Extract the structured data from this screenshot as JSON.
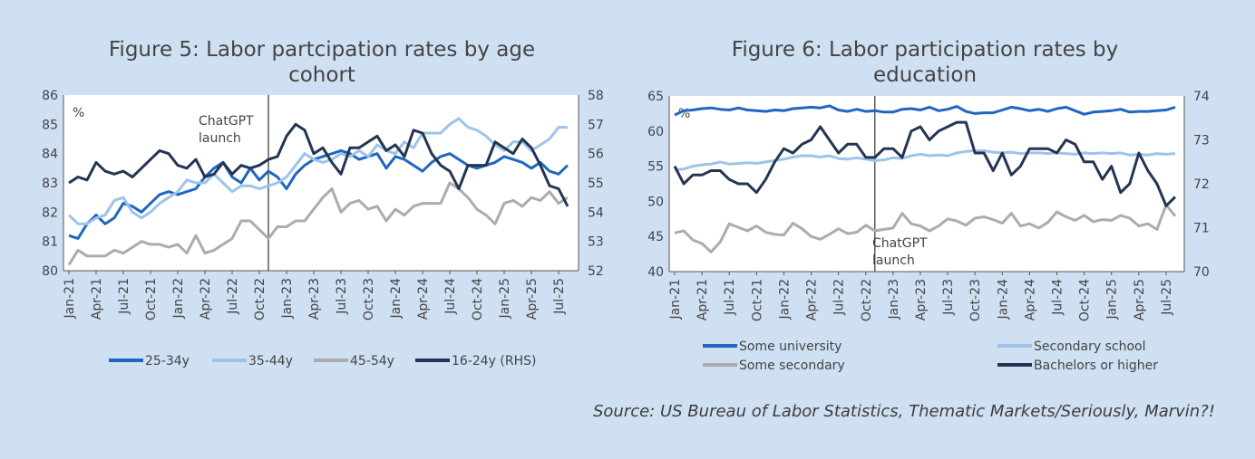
{
  "source": "Source: US Bureau of Labor Statistics, Thematic Markets/Seriously, Marvin?!",
  "colors": {
    "series_25_34": "#1f66c0",
    "series_35_44": "#9ec3ea",
    "series_45_54": "#ababb0",
    "series_16_24": "#233553",
    "some_university": "#1f66c0",
    "secondary_school": "#9ec3ea",
    "some_secondary": "#ababb0",
    "bachelors": "#233553"
  },
  "chart_data": [
    {
      "type": "line",
      "title": "Figure 5: Labor partcipation rates by age cohort",
      "x": [
        "Jan-21",
        "Feb-21",
        "Mar-21",
        "Apr-21",
        "May-21",
        "Jun-21",
        "Jul-21",
        "Aug-21",
        "Sep-21",
        "Oct-21",
        "Nov-21",
        "Dec-21",
        "Jan-22",
        "Feb-22",
        "Mar-22",
        "Apr-22",
        "May-22",
        "Jun-22",
        "Jul-22",
        "Aug-22",
        "Sep-22",
        "Oct-22",
        "Nov-22",
        "Dec-22",
        "Jan-23",
        "Feb-23",
        "Mar-23",
        "Apr-23",
        "May-23",
        "Jun-23",
        "Jul-23",
        "Aug-23",
        "Sep-23",
        "Oct-23",
        "Nov-23",
        "Dec-23",
        "Jan-24",
        "Feb-24",
        "Mar-24",
        "Apr-24",
        "May-24",
        "Jun-24",
        "Jul-24",
        "Aug-24",
        "Sep-24",
        "Oct-24",
        "Nov-24",
        "Dec-24",
        "Jan-25",
        "Feb-25",
        "Mar-25",
        "Apr-25",
        "May-25",
        "Jun-25",
        "Jul-25",
        "Aug-25"
      ],
      "x_tick_labels": [
        "Jan-21",
        "Apr-21",
        "Jul-21",
        "Oct-21",
        "Jan-22",
        "Apr-22",
        "Jul-22",
        "Oct-22",
        "Jan-23",
        "Apr-23",
        "Jul-23",
        "Oct-23",
        "Jan-24",
        "Apr-24",
        "Jul-24",
        "Oct-24",
        "Jan-25",
        "Apr-25",
        "Jul-25"
      ],
      "y_left": {
        "label": "%",
        "lim": [
          80,
          86
        ],
        "ticks": [
          80,
          81,
          82,
          83,
          84,
          85,
          86
        ]
      },
      "y_right": {
        "lim": [
          52,
          58
        ],
        "ticks": [
          52,
          53,
          54,
          55,
          56,
          57,
          58
        ]
      },
      "annotation": {
        "text": [
          "ChatGPT",
          "launch"
        ],
        "x": "Nov-22"
      },
      "legend_position": "bottom",
      "series": [
        {
          "name": "25-34y",
          "axis": "left",
          "color_key": "series_25_34",
          "values": [
            81.2,
            81.1,
            81.6,
            81.9,
            81.6,
            81.8,
            82.3,
            82.2,
            82.0,
            82.3,
            82.6,
            82.7,
            82.6,
            82.7,
            82.8,
            83.2,
            83.5,
            83.7,
            83.2,
            83.0,
            83.5,
            83.1,
            83.4,
            83.2,
            82.8,
            83.3,
            83.6,
            83.8,
            83.9,
            84.0,
            84.1,
            84.0,
            83.8,
            83.9,
            84.0,
            83.5,
            83.9,
            83.8,
            83.6,
            83.4,
            83.7,
            83.9,
            84.0,
            83.8,
            83.6,
            83.5,
            83.6,
            83.7,
            83.9,
            83.8,
            83.7,
            83.5,
            83.7,
            83.4,
            83.3,
            83.6
          ]
        },
        {
          "name": "35-44y",
          "axis": "left",
          "color_key": "series_35_44",
          "values": [
            81.9,
            81.6,
            81.6,
            81.8,
            81.9,
            82.4,
            82.5,
            82.0,
            81.8,
            82.0,
            82.3,
            82.5,
            82.7,
            83.1,
            83.0,
            83.0,
            83.3,
            83.0,
            82.7,
            82.9,
            82.9,
            82.8,
            82.9,
            83.0,
            83.2,
            83.6,
            84.0,
            83.8,
            83.7,
            83.8,
            84.0,
            83.9,
            84.1,
            83.9,
            84.3,
            84.1,
            84.0,
            84.4,
            84.2,
            84.7,
            84.7,
            84.7,
            85.0,
            85.2,
            84.9,
            84.8,
            84.6,
            84.3,
            84.1,
            84.4,
            84.4,
            84.1,
            84.3,
            84.5,
            84.9,
            84.9
          ]
        },
        {
          "name": "45-54y",
          "axis": "left",
          "color_key": "series_45_54",
          "values": [
            80.2,
            80.7,
            80.5,
            80.5,
            80.5,
            80.7,
            80.6,
            80.8,
            81.0,
            80.9,
            80.9,
            80.8,
            80.9,
            80.6,
            81.2,
            80.6,
            80.7,
            80.9,
            81.1,
            81.7,
            81.7,
            81.4,
            81.1,
            81.5,
            81.5,
            81.7,
            81.7,
            82.1,
            82.5,
            82.8,
            82.0,
            82.3,
            82.4,
            82.1,
            82.2,
            81.7,
            82.1,
            81.9,
            82.2,
            82.3,
            82.3,
            82.3,
            83.0,
            82.8,
            82.5,
            82.1,
            81.9,
            81.6,
            82.3,
            82.4,
            82.2,
            82.5,
            82.4,
            82.7,
            82.3,
            82.5
          ]
        },
        {
          "name": "16-24y (RHS)",
          "axis": "right",
          "color_key": "series_16_24",
          "values": [
            55.0,
            55.2,
            55.1,
            55.7,
            55.4,
            55.3,
            55.4,
            55.2,
            55.5,
            55.8,
            56.1,
            56.0,
            55.6,
            55.5,
            55.8,
            55.2,
            55.3,
            55.7,
            55.3,
            55.6,
            55.5,
            55.6,
            55.8,
            55.9,
            56.6,
            57.0,
            56.8,
            56.0,
            56.2,
            55.7,
            55.3,
            56.2,
            56.2,
            56.4,
            56.6,
            56.1,
            56.3,
            55.9,
            56.8,
            56.7,
            56.0,
            55.6,
            55.4,
            54.8,
            55.6,
            55.6,
            55.6,
            56.4,
            56.2,
            56.0,
            56.5,
            56.2,
            55.6,
            54.9,
            54.8,
            54.2
          ]
        }
      ]
    },
    {
      "type": "line",
      "title": "Figure 6: Labor participation rates by education",
      "x": [
        "Jan-21",
        "Feb-21",
        "Mar-21",
        "Apr-21",
        "May-21",
        "Jun-21",
        "Jul-21",
        "Aug-21",
        "Sep-21",
        "Oct-21",
        "Nov-21",
        "Dec-21",
        "Jan-22",
        "Feb-22",
        "Mar-22",
        "Apr-22",
        "May-22",
        "Jun-22",
        "Jul-22",
        "Aug-22",
        "Sep-22",
        "Oct-22",
        "Nov-22",
        "Dec-22",
        "Jan-23",
        "Feb-23",
        "Mar-23",
        "Apr-23",
        "May-23",
        "Jun-23",
        "Jul-23",
        "Aug-23",
        "Sep-23",
        "Oct-23",
        "Nov-23",
        "Dec-23",
        "Jan-24",
        "Feb-24",
        "Mar-24",
        "Apr-24",
        "May-24",
        "Jun-24",
        "Jul-24",
        "Aug-24",
        "Sep-24",
        "Oct-24",
        "Nov-24",
        "Dec-24",
        "Jan-25",
        "Feb-25",
        "Mar-25",
        "Apr-25",
        "May-25",
        "Jun-25",
        "Jul-25",
        "Aug-25"
      ],
      "x_tick_labels": [
        "Jan-21",
        "Apr-21",
        "Jul-21",
        "Oct-21",
        "Jan-22",
        "Apr-22",
        "Jul-22",
        "Oct-22",
        "Jan-23",
        "Apr-23",
        "Jul-23",
        "Oct-23",
        "Jan-24",
        "Apr-24",
        "Jul-24",
        "Oct-24",
        "Jan-25",
        "Apr-25",
        "Jul-25"
      ],
      "y_left": {
        "label": "%",
        "lim": [
          40,
          65
        ],
        "ticks": [
          40,
          45,
          50,
          55,
          60,
          65
        ]
      },
      "y_right": {
        "lim": [
          70,
          74
        ],
        "ticks": [
          70,
          71,
          72,
          73,
          74
        ]
      },
      "annotation": {
        "text": [
          "ChatGPT",
          "launch"
        ],
        "x": "Nov-22"
      },
      "legend_position": "bottom",
      "series": [
        {
          "name": "Some university",
          "axis": "left",
          "color_key": "some_university",
          "values": [
            62.3,
            62.9,
            63.0,
            63.2,
            63.3,
            63.1,
            63.0,
            63.3,
            63.0,
            62.9,
            62.8,
            63.0,
            62.9,
            63.2,
            63.3,
            63.4,
            63.3,
            63.6,
            63.0,
            62.8,
            63.1,
            62.8,
            62.9,
            62.7,
            62.7,
            63.1,
            63.2,
            63.0,
            63.4,
            62.9,
            63.1,
            63.5,
            62.8,
            62.5,
            62.6,
            62.6,
            63.0,
            63.4,
            63.2,
            62.9,
            63.1,
            62.8,
            63.2,
            63.4,
            62.9,
            62.4,
            62.7,
            62.8,
            62.9,
            63.1,
            62.7,
            62.8,
            62.8,
            62.9,
            63.0,
            63.4
          ]
        },
        {
          "name": "Secondary school",
          "axis": "left",
          "color_key": "secondary_school",
          "values": [
            54.5,
            54.6,
            55.0,
            55.2,
            55.3,
            55.6,
            55.3,
            55.4,
            55.5,
            55.4,
            55.6,
            55.8,
            56.0,
            56.3,
            56.5,
            56.5,
            56.3,
            56.5,
            56.1,
            56.0,
            56.2,
            56.0,
            55.8,
            55.9,
            56.2,
            56.1,
            56.5,
            56.7,
            56.5,
            56.6,
            56.5,
            56.9,
            57.1,
            57.2,
            57.2,
            57.0,
            56.9,
            57.0,
            56.8,
            56.9,
            56.9,
            56.8,
            56.9,
            56.8,
            56.7,
            56.9,
            56.8,
            56.9,
            56.8,
            56.9,
            56.6,
            56.7,
            56.6,
            56.8,
            56.7,
            56.8
          ]
        },
        {
          "name": "Some secondary",
          "axis": "left",
          "color_key": "some_secondary",
          "values": [
            45.5,
            45.8,
            44.5,
            44.0,
            42.8,
            44.2,
            46.8,
            46.3,
            45.8,
            46.5,
            45.6,
            45.3,
            45.2,
            46.9,
            46.1,
            45.0,
            44.6,
            45.3,
            46.1,
            45.4,
            45.6,
            46.6,
            45.8,
            46.0,
            46.2,
            48.3,
            46.8,
            46.5,
            45.8,
            46.5,
            47.5,
            47.2,
            46.6,
            47.6,
            47.8,
            47.4,
            46.9,
            48.3,
            46.5,
            46.8,
            46.2,
            47.0,
            48.5,
            47.8,
            47.3,
            48.0,
            47.1,
            47.4,
            47.3,
            48.0,
            47.6,
            46.5,
            46.8,
            46.0,
            49.5,
            47.9
          ]
        },
        {
          "name": "Bachelors or higher",
          "axis": "right",
          "color_key": "bachelors",
          "values": [
            72.4,
            72.0,
            72.2,
            72.2,
            72.3,
            72.3,
            72.1,
            72.0,
            72.0,
            71.8,
            72.1,
            72.5,
            72.8,
            72.7,
            72.9,
            73.0,
            73.3,
            73.0,
            72.7,
            72.9,
            72.9,
            72.6,
            72.6,
            72.8,
            72.8,
            72.6,
            73.2,
            73.3,
            73.0,
            73.2,
            73.3,
            73.4,
            73.4,
            72.7,
            72.7,
            72.3,
            72.7,
            72.2,
            72.4,
            72.8,
            72.8,
            72.8,
            72.7,
            73.0,
            72.9,
            72.5,
            72.5,
            72.1,
            72.4,
            71.8,
            72.0,
            72.7,
            72.3,
            72.0,
            71.5,
            71.7
          ]
        }
      ]
    }
  ]
}
